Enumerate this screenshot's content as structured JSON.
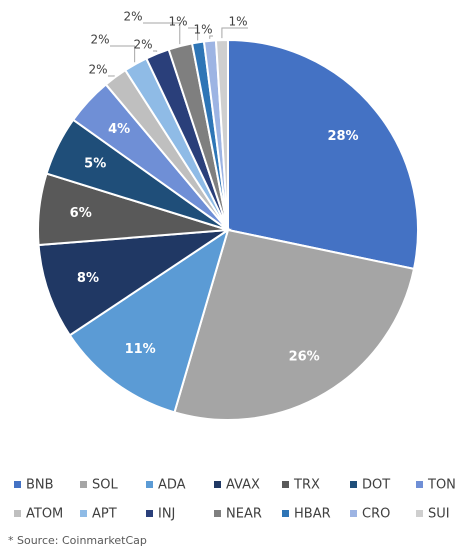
{
  "chart_data": {
    "type": "pie",
    "categories": [
      "BNB",
      "SOL",
      "ADA",
      "AVAX",
      "TRX",
      "DOT",
      "TON",
      "ATOM",
      "APT",
      "INJ",
      "NEAR",
      "HBAR",
      "CRO",
      "SUI"
    ],
    "values": [
      28,
      26,
      11,
      8,
      6,
      5,
      4,
      2,
      2,
      2,
      2,
      1,
      1,
      1
    ],
    "value_labels": [
      "28%",
      "26%",
      "11%",
      "8%",
      "6%",
      "5%",
      "4%",
      "2%",
      "2%",
      "2%",
      "2%",
      "1%",
      "1%",
      "1%"
    ],
    "colors": [
      "#4472c4",
      "#a5a5a5",
      "#5b9bd5",
      "#203864",
      "#595959",
      "#1f4e79",
      "#6f8fd6",
      "#bfbfbf",
      "#8fbbe6",
      "#2a3f7a",
      "#7f7f7f",
      "#2e75b6",
      "#9db4e3",
      "#cfcfcf"
    ],
    "legend": "bottom",
    "source": "* Source: CoinmarketCap"
  }
}
